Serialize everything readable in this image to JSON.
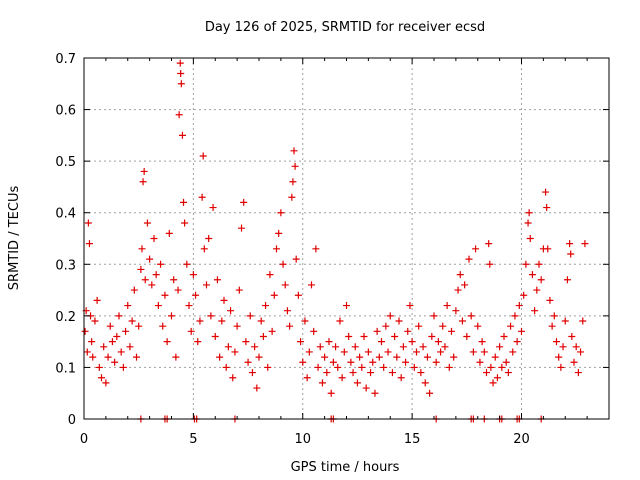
{
  "chart_data": {
    "type": "scatter",
    "title": "Day 126 of 2025, SRMTID for receiver ecsd",
    "xlabel": "GPS time / hours",
    "ylabel": "SRMTID / TECUs",
    "xlim": [
      0,
      24
    ],
    "ylim": [
      0,
      0.7
    ],
    "xticks": [
      0,
      5,
      10,
      15,
      20
    ],
    "yticks": [
      0,
      0.1,
      0.2,
      0.3,
      0.4,
      0.5,
      0.6,
      0.7
    ],
    "grid": true,
    "marker": "+",
    "series_color": "#e00000",
    "series": [
      {
        "name": "SRMTID",
        "points": [
          [
            0.05,
            0.17
          ],
          [
            0.1,
            0.21
          ],
          [
            0.15,
            0.13
          ],
          [
            0.2,
            0.38
          ],
          [
            0.25,
            0.34
          ],
          [
            0.3,
            0.2
          ],
          [
            0.35,
            0.15
          ],
          [
            0.4,
            0.12
          ],
          [
            0.5,
            0.19
          ],
          [
            0.6,
            0.23
          ],
          [
            0.7,
            0.1
          ],
          [
            0.8,
            0.08
          ],
          [
            0.9,
            0.14
          ],
          [
            1.0,
            0.07
          ],
          [
            1.1,
            0.12
          ],
          [
            1.2,
            0.18
          ],
          [
            1.3,
            0.15
          ],
          [
            1.4,
            0.11
          ],
          [
            1.5,
            0.16
          ],
          [
            1.6,
            0.2
          ],
          [
            1.7,
            0.13
          ],
          [
            1.8,
            0.1
          ],
          [
            1.9,
            0.17
          ],
          [
            2.0,
            0.22
          ],
          [
            2.1,
            0.14
          ],
          [
            2.2,
            0.19
          ],
          [
            2.3,
            0.25
          ],
          [
            2.4,
            0.12
          ],
          [
            2.5,
            0.18
          ],
          [
            2.6,
            0.29
          ],
          [
            2.65,
            0.33
          ],
          [
            2.7,
            0.46
          ],
          [
            2.75,
            0.48
          ],
          [
            2.8,
            0.27
          ],
          [
            2.9,
            0.38
          ],
          [
            3.0,
            0.31
          ],
          [
            3.1,
            0.26
          ],
          [
            3.2,
            0.35
          ],
          [
            3.3,
            0.28
          ],
          [
            3.4,
            0.22
          ],
          [
            3.5,
            0.3
          ],
          [
            3.6,
            0.18
          ],
          [
            3.7,
            0.24
          ],
          [
            3.8,
            0.15
          ],
          [
            3.9,
            0.36
          ],
          [
            4.0,
            0.2
          ],
          [
            4.1,
            0.27
          ],
          [
            4.2,
            0.12
          ],
          [
            4.3,
            0.25
          ],
          [
            4.35,
            0.59
          ],
          [
            4.4,
            0.69
          ],
          [
            4.42,
            0.67
          ],
          [
            4.45,
            0.65
          ],
          [
            4.5,
            0.55
          ],
          [
            4.55,
            0.42
          ],
          [
            4.6,
            0.38
          ],
          [
            4.7,
            0.3
          ],
          [
            4.8,
            0.22
          ],
          [
            4.9,
            0.17
          ],
          [
            5.0,
            0.28
          ],
          [
            5.1,
            0.24
          ],
          [
            5.2,
            0.15
          ],
          [
            5.3,
            0.19
          ],
          [
            5.4,
            0.43
          ],
          [
            5.45,
            0.51
          ],
          [
            5.5,
            0.33
          ],
          [
            5.6,
            0.26
          ],
          [
            5.7,
            0.35
          ],
          [
            5.8,
            0.2
          ],
          [
            5.9,
            0.41
          ],
          [
            6.0,
            0.16
          ],
          [
            6.1,
            0.27
          ],
          [
            6.2,
            0.12
          ],
          [
            6.3,
            0.19
          ],
          [
            6.4,
            0.23
          ],
          [
            6.5,
            0.1
          ],
          [
            6.6,
            0.14
          ],
          [
            6.7,
            0.21
          ],
          [
            6.8,
            0.08
          ],
          [
            6.9,
            0.13
          ],
          [
            7.0,
            0.18
          ],
          [
            7.1,
            0.25
          ],
          [
            7.2,
            0.37
          ],
          [
            7.3,
            0.42
          ],
          [
            7.4,
            0.15
          ],
          [
            7.5,
            0.11
          ],
          [
            7.6,
            0.2
          ],
          [
            7.7,
            0.09
          ],
          [
            7.8,
            0.14
          ],
          [
            7.9,
            0.06
          ],
          [
            8.0,
            0.12
          ],
          [
            8.1,
            0.19
          ],
          [
            8.2,
            0.16
          ],
          [
            8.3,
            0.22
          ],
          [
            8.4,
            0.1
          ],
          [
            8.5,
            0.28
          ],
          [
            8.6,
            0.17
          ],
          [
            8.7,
            0.24
          ],
          [
            8.8,
            0.33
          ],
          [
            8.9,
            0.36
          ],
          [
            9.0,
            0.4
          ],
          [
            9.1,
            0.3
          ],
          [
            9.2,
            0.26
          ],
          [
            9.3,
            0.21
          ],
          [
            9.4,
            0.18
          ],
          [
            9.5,
            0.43
          ],
          [
            9.55,
            0.46
          ],
          [
            9.6,
            0.52
          ],
          [
            9.65,
            0.49
          ],
          [
            9.7,
            0.31
          ],
          [
            9.8,
            0.24
          ],
          [
            9.9,
            0.15
          ],
          [
            10.0,
            0.11
          ],
          [
            10.1,
            0.19
          ],
          [
            10.2,
            0.08
          ],
          [
            10.3,
            0.13
          ],
          [
            10.4,
            0.26
          ],
          [
            10.5,
            0.17
          ],
          [
            10.6,
            0.33
          ],
          [
            10.7,
            0.1
          ],
          [
            10.8,
            0.14
          ],
          [
            10.9,
            0.07
          ],
          [
            11.0,
            0.12
          ],
          [
            11.1,
            0.09
          ],
          [
            11.2,
            0.15
          ],
          [
            11.3,
            0.05
          ],
          [
            11.4,
            0.11
          ],
          [
            11.5,
            0.14
          ],
          [
            11.6,
            0.1
          ],
          [
            11.7,
            0.19
          ],
          [
            11.8,
            0.08
          ],
          [
            11.9,
            0.13
          ],
          [
            12.0,
            0.22
          ],
          [
            12.1,
            0.16
          ],
          [
            12.2,
            0.11
          ],
          [
            12.3,
            0.09
          ],
          [
            12.4,
            0.14
          ],
          [
            12.5,
            0.07
          ],
          [
            12.6,
            0.12
          ],
          [
            12.7,
            0.1
          ],
          [
            12.8,
            0.16
          ],
          [
            12.9,
            0.06
          ],
          [
            13.0,
            0.13
          ],
          [
            13.1,
            0.09
          ],
          [
            13.2,
            0.11
          ],
          [
            13.3,
            0.05
          ],
          [
            13.4,
            0.17
          ],
          [
            13.5,
            0.12
          ],
          [
            13.6,
            0.15
          ],
          [
            13.7,
            0.1
          ],
          [
            13.8,
            0.18
          ],
          [
            13.9,
            0.13
          ],
          [
            14.0,
            0.2
          ],
          [
            14.1,
            0.09
          ],
          [
            14.2,
            0.16
          ],
          [
            14.3,
            0.12
          ],
          [
            14.4,
            0.19
          ],
          [
            14.5,
            0.08
          ],
          [
            14.6,
            0.14
          ],
          [
            14.7,
            0.11
          ],
          [
            14.8,
            0.17
          ],
          [
            14.9,
            0.22
          ],
          [
            15.0,
            0.15
          ],
          [
            15.1,
            0.1
          ],
          [
            15.2,
            0.13
          ],
          [
            15.3,
            0.18
          ],
          [
            15.4,
            0.09
          ],
          [
            15.5,
            0.14
          ],
          [
            15.6,
            0.07
          ],
          [
            15.7,
            0.12
          ],
          [
            15.8,
            0.05
          ],
          [
            15.9,
            0.16
          ],
          [
            16.0,
            0.2
          ],
          [
            16.1,
            0.11
          ],
          [
            16.2,
            0.15
          ],
          [
            16.3,
            0.13
          ],
          [
            16.4,
            0.18
          ],
          [
            16.5,
            0.14
          ],
          [
            16.6,
            0.22
          ],
          [
            16.7,
            0.1
          ],
          [
            16.8,
            0.17
          ],
          [
            16.9,
            0.12
          ],
          [
            17.0,
            0.21
          ],
          [
            17.1,
            0.25
          ],
          [
            17.2,
            0.28
          ],
          [
            17.3,
            0.19
          ],
          [
            17.4,
            0.26
          ],
          [
            17.5,
            0.16
          ],
          [
            17.6,
            0.31
          ],
          [
            17.7,
            0.2
          ],
          [
            17.8,
            0.13
          ],
          [
            17.9,
            0.33
          ],
          [
            18.0,
            0.18
          ],
          [
            18.1,
            0.11
          ],
          [
            18.2,
            0.15
          ],
          [
            18.3,
            0.13
          ],
          [
            18.4,
            0.09
          ],
          [
            18.5,
            0.34
          ],
          [
            18.55,
            0.3
          ],
          [
            18.6,
            0.1
          ],
          [
            18.7,
            0.07
          ],
          [
            18.8,
            0.12
          ],
          [
            18.9,
            0.08
          ],
          [
            19.0,
            0.14
          ],
          [
            19.1,
            0.1
          ],
          [
            19.2,
            0.16
          ],
          [
            19.3,
            0.11
          ],
          [
            19.4,
            0.09
          ],
          [
            19.5,
            0.18
          ],
          [
            19.6,
            0.13
          ],
          [
            19.7,
            0.2
          ],
          [
            19.8,
            0.15
          ],
          [
            19.9,
            0.22
          ],
          [
            20.0,
            0.17
          ],
          [
            20.1,
            0.24
          ],
          [
            20.2,
            0.3
          ],
          [
            20.3,
            0.38
          ],
          [
            20.35,
            0.4
          ],
          [
            20.4,
            0.35
          ],
          [
            20.5,
            0.28
          ],
          [
            20.6,
            0.21
          ],
          [
            20.7,
            0.25
          ],
          [
            20.8,
            0.3
          ],
          [
            20.9,
            0.27
          ],
          [
            21.0,
            0.33
          ],
          [
            21.1,
            0.44
          ],
          [
            21.15,
            0.41
          ],
          [
            21.2,
            0.33
          ],
          [
            21.3,
            0.23
          ],
          [
            21.4,
            0.18
          ],
          [
            21.5,
            0.2
          ],
          [
            21.6,
            0.15
          ],
          [
            21.7,
            0.12
          ],
          [
            21.8,
            0.1
          ],
          [
            21.9,
            0.14
          ],
          [
            22.0,
            0.19
          ],
          [
            22.1,
            0.27
          ],
          [
            22.2,
            0.34
          ],
          [
            22.25,
            0.32
          ],
          [
            22.3,
            0.16
          ],
          [
            22.4,
            0.11
          ],
          [
            22.5,
            0.14
          ],
          [
            22.6,
            0.09
          ],
          [
            22.7,
            0.13
          ],
          [
            22.8,
            0.19
          ],
          [
            22.9,
            0.34
          ]
        ]
      },
      {
        "name": "zero-level",
        "points": [
          [
            2.6,
            0
          ],
          [
            3.7,
            0
          ],
          [
            3.8,
            0
          ],
          [
            5.05,
            0
          ],
          [
            5.15,
            0
          ],
          [
            6.9,
            0
          ],
          [
            11.3,
            0
          ],
          [
            11.4,
            0
          ],
          [
            16.1,
            0
          ],
          [
            17.7,
            0
          ],
          [
            17.8,
            0
          ],
          [
            18.3,
            0
          ],
          [
            19.0,
            0
          ],
          [
            19.1,
            0
          ],
          [
            19.8,
            0
          ],
          [
            19.9,
            0
          ],
          [
            20.9,
            0
          ]
        ]
      }
    ]
  }
}
